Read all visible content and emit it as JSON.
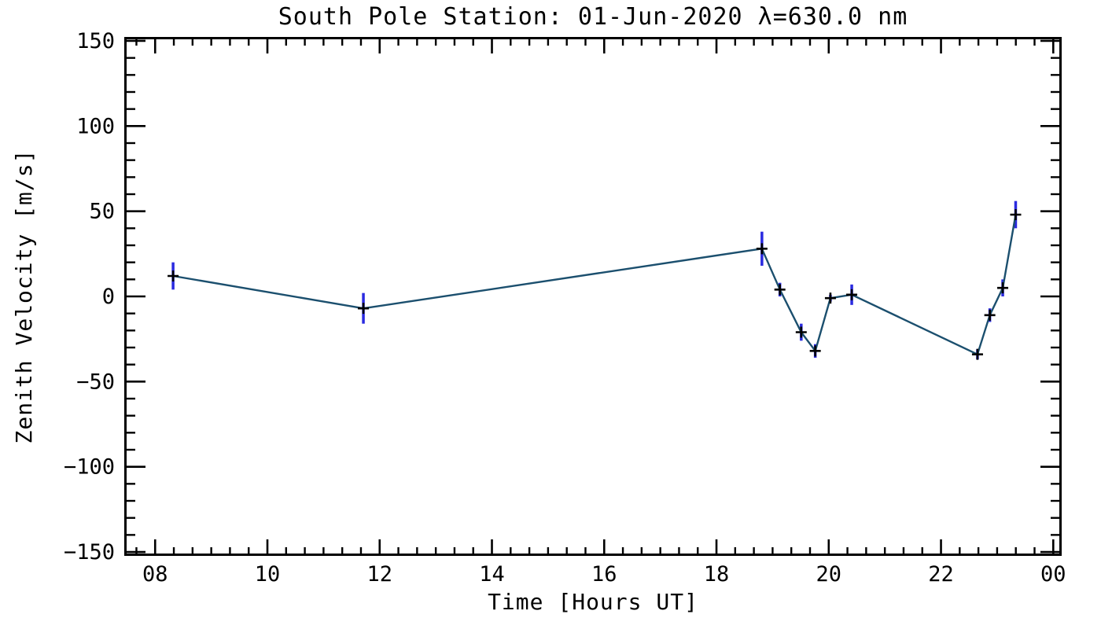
{
  "chart": {
    "title": "South Pole Station: 01-Jun-2020 λ=630.0 nm",
    "xlabel": "Time [Hours UT]",
    "ylabel": "Zenith Velocity [m/s]"
  },
  "chart_data": {
    "type": "line",
    "title": "South Pole Station: 01-Jun-2020 λ=630.0 nm",
    "xlabel": "Time [Hours UT]",
    "ylabel": "Zenith Velocity [m/s]",
    "xlim": [
      7.45,
      24.15
    ],
    "ylim": [
      -152.3,
      152.3
    ],
    "x_major_ticks": [
      8,
      10,
      12,
      14,
      16,
      18,
      20,
      22,
      24
    ],
    "x_tick_labels": [
      "08",
      "10",
      "12",
      "14",
      "16",
      "18",
      "20",
      "22",
      "00"
    ],
    "x_minor_step_hours": 0.33333,
    "y_major_ticks": [
      150,
      100,
      50,
      0,
      -50,
      -100,
      -150
    ],
    "y_tick_labels": [
      "150",
      "100",
      "50",
      "0",
      "−50",
      "−100",
      "−150"
    ],
    "y_minor_step": 10,
    "grid": false,
    "legend": null,
    "marker": "plus",
    "colors": {
      "line": "#1b4f6e",
      "error_bar": "#2a2ae0",
      "marker": "#000000",
      "axis": "#000000",
      "background": "#ffffff"
    },
    "series": [
      {
        "name": "zenith_velocity",
        "points": [
          {
            "t": 8.32,
            "v": 12,
            "err": 8
          },
          {
            "t": 11.71,
            "v": -7,
            "err": 9
          },
          {
            "t": 18.81,
            "v": 28,
            "err": 10
          },
          {
            "t": 19.13,
            "v": 4,
            "err": 4
          },
          {
            "t": 19.51,
            "v": -21,
            "err": 5
          },
          {
            "t": 19.76,
            "v": -32,
            "err": 4
          },
          {
            "t": 20.03,
            "v": -1,
            "err": 2
          },
          {
            "t": 20.41,
            "v": 1,
            "err": 6
          },
          {
            "t": 22.65,
            "v": -34,
            "err": 3
          },
          {
            "t": 22.87,
            "v": -11,
            "err": 4
          },
          {
            "t": 23.1,
            "v": 5,
            "err": 5
          },
          {
            "t": 23.33,
            "v": 48,
            "err": 8
          }
        ]
      }
    ]
  }
}
